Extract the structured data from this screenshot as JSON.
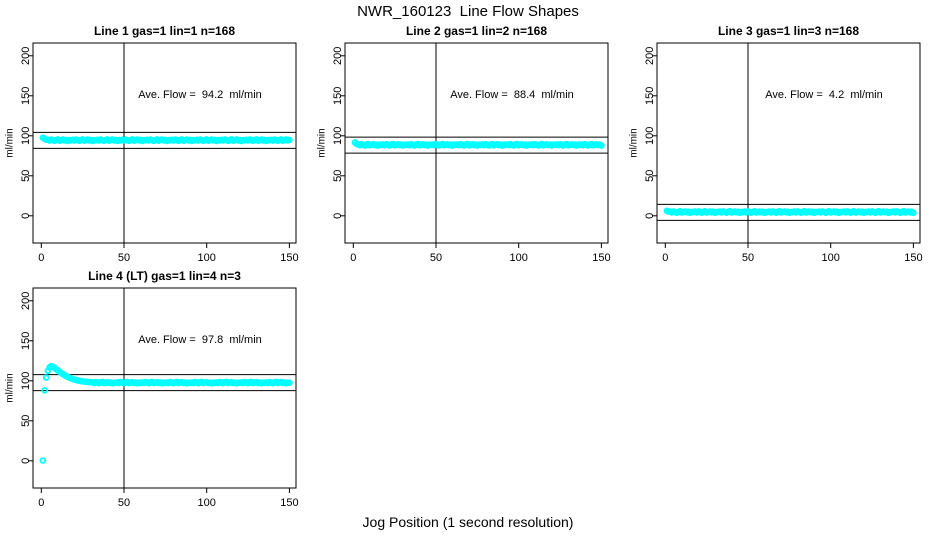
{
  "figure": {
    "title": "NWR_160123  Line Flow Shapes",
    "xlabel": "Jog Position (1 second resolution)",
    "point_color": "#00FFFF",
    "line_color": "#000000",
    "background": "#FFFFFF"
  },
  "chart_data": [
    {
      "type": "scatter",
      "title": "Line 1 gas=1 lin=1 n=168",
      "annotation": "Ave. Flow =  94.2  ml/min",
      "ave_flow": 94.2,
      "ylabel": "ml/min",
      "xlim": [
        -5,
        154
      ],
      "ylim": [
        -34,
        216
      ],
      "x_ticks": [
        0,
        50,
        100,
        150
      ],
      "y_ticks": [
        0,
        50,
        100,
        150,
        200
      ],
      "vline_x": 50,
      "hlines": [
        104.2,
        84.2
      ],
      "x_start": 1,
      "y": [
        97.6,
        96.2,
        95.1,
        95.0,
        94.1,
        95.3,
        94.5,
        93.7,
        94.8,
        95.5,
        93.9,
        94.6,
        95.2,
        94.2,
        94.9,
        93.6,
        94.7,
        94.4,
        95.0,
        94.1,
        95.3,
        94.5,
        93.7,
        94.8,
        95.5,
        93.9,
        94.6,
        95.2,
        94.2,
        94.9,
        93.6,
        94.7,
        94.4,
        95.0,
        94.1,
        95.3,
        94.5,
        93.7,
        94.8,
        95.5,
        93.9,
        94.6,
        95.2,
        94.2,
        94.9,
        93.6,
        94.7,
        94.4,
        95.0,
        94.1,
        95.3,
        94.5,
        93.7,
        94.8,
        95.5,
        93.9,
        94.6,
        95.2,
        94.2,
        94.9,
        93.6,
        94.7,
        94.4,
        95.0,
        94.1,
        95.3,
        94.5,
        93.7,
        94.8,
        95.5,
        93.9,
        94.6,
        95.2,
        94.2,
        94.9,
        93.6,
        94.7,
        94.4,
        95.0,
        94.1,
        95.3,
        94.5,
        93.7,
        94.8,
        95.5,
        93.9,
        94.6,
        95.2,
        94.2,
        94.9,
        93.6,
        94.7,
        94.4,
        95.0,
        94.1,
        95.3,
        94.5,
        93.7,
        94.8,
        95.5,
        93.9,
        94.6,
        95.2,
        94.2,
        94.9,
        93.6,
        94.7,
        94.4,
        95.0,
        94.1,
        95.3,
        94.5,
        93.7,
        94.8,
        95.5,
        93.9,
        94.6,
        95.2,
        94.2,
        94.9,
        93.6,
        94.7,
        94.4,
        95.0,
        94.1,
        95.3,
        94.5,
        93.7,
        94.8,
        95.5,
        93.9,
        94.6,
        95.2,
        94.2,
        94.9,
        93.6,
        94.7,
        94.4,
        95.0,
        94.1,
        95.3,
        94.5,
        93.7,
        94.8,
        95.5,
        93.9,
        94.6,
        95.2,
        94.2,
        94.9
      ]
    },
    {
      "type": "scatter",
      "title": "Line 2 gas=1 lin=2 n=168",
      "annotation": "Ave. Flow =  88.4  ml/min",
      "ave_flow": 88.4,
      "ylabel": "ml/min",
      "xlim": [
        -5,
        154
      ],
      "ylim": [
        -34,
        216
      ],
      "x_ticks": [
        0,
        50,
        100,
        150
      ],
      "y_ticks": [
        0,
        50,
        100,
        150,
        200
      ],
      "vline_x": 50,
      "hlines": [
        98.4,
        78.4
      ],
      "x_start": 1,
      "y": [
        91.8,
        89.9,
        89.2,
        88.3,
        89.5,
        88.7,
        87.9,
        89.0,
        89.7,
        88.1,
        88.8,
        89.4,
        88.4,
        89.1,
        87.8,
        88.9,
        88.6,
        89.2,
        88.3,
        89.5,
        88.7,
        87.9,
        89.0,
        89.7,
        88.1,
        88.8,
        89.4,
        88.4,
        89.1,
        87.8,
        88.9,
        88.6,
        89.2,
        88.3,
        89.5,
        88.7,
        87.9,
        89.0,
        89.7,
        88.1,
        88.8,
        89.4,
        88.4,
        89.1,
        87.8,
        88.9,
        88.6,
        89.2,
        88.3,
        89.5,
        88.7,
        87.9,
        89.0,
        89.7,
        88.1,
        88.8,
        89.4,
        88.4,
        89.1,
        87.8,
        88.9,
        88.6,
        89.2,
        88.3,
        89.5,
        88.7,
        87.9,
        89.0,
        89.7,
        88.1,
        88.8,
        89.4,
        88.4,
        89.1,
        87.8,
        88.9,
        88.6,
        89.2,
        88.3,
        89.5,
        88.7,
        87.9,
        89.0,
        89.7,
        88.1,
        88.8,
        89.4,
        88.4,
        89.1,
        87.8,
        88.9,
        88.6,
        89.2,
        88.3,
        89.5,
        88.7,
        87.9,
        89.0,
        89.7,
        88.1,
        88.8,
        89.4,
        88.4,
        89.1,
        87.8,
        88.9,
        88.6,
        89.2,
        88.3,
        89.5,
        88.7,
        87.9,
        89.0,
        89.7,
        88.1,
        88.8,
        89.4,
        88.4,
        89.1,
        87.8,
        88.9,
        88.6,
        89.2,
        88.3,
        89.5,
        88.7,
        87.9,
        89.0,
        89.7,
        88.1,
        88.8,
        89.4,
        88.4,
        89.1,
        87.8,
        88.9,
        88.6,
        89.2,
        88.3,
        89.5,
        88.7,
        87.9,
        89.0,
        89.7,
        88.1,
        88.8,
        89.4,
        88.4,
        89.1,
        87.8
      ]
    },
    {
      "type": "scatter",
      "title": "Line 3 gas=1 lin=3 n=168",
      "annotation": "Ave. Flow =  4.2  ml/min",
      "ave_flow": 4.2,
      "ylabel": "ml/min",
      "xlim": [
        -5,
        154
      ],
      "ylim": [
        -34,
        216
      ],
      "x_ticks": [
        0,
        50,
        100,
        150
      ],
      "y_ticks": [
        0,
        50,
        100,
        150,
        200
      ],
      "vline_x": 50,
      "hlines": [
        14.2,
        -5.8
      ],
      "x_start": 1,
      "y": [
        6.3,
        5.4,
        5.2,
        4.3,
        5.5,
        4.7,
        3.9,
        5.0,
        5.7,
        4.1,
        4.8,
        5.4,
        4.4,
        5.1,
        3.8,
        4.9,
        4.6,
        5.2,
        4.3,
        5.5,
        4.7,
        3.9,
        5.0,
        5.7,
        4.1,
        4.8,
        5.4,
        4.4,
        5.1,
        3.8,
        4.9,
        4.6,
        5.2,
        4.3,
        5.5,
        4.7,
        3.9,
        5.0,
        5.7,
        4.1,
        4.8,
        5.4,
        4.4,
        5.1,
        3.8,
        4.9,
        4.6,
        5.2,
        4.3,
        5.5,
        4.7,
        3.9,
        5.0,
        5.7,
        4.1,
        4.8,
        5.4,
        4.4,
        5.1,
        3.8,
        4.9,
        4.6,
        5.2,
        4.3,
        5.5,
        4.7,
        3.9,
        5.0,
        5.7,
        4.1,
        4.8,
        5.4,
        4.4,
        5.1,
        3.8,
        4.9,
        4.6,
        5.2,
        4.3,
        5.5,
        4.7,
        3.9,
        5.0,
        5.7,
        4.1,
        4.8,
        5.4,
        4.4,
        5.1,
        3.8,
        4.9,
        4.6,
        5.2,
        4.3,
        5.5,
        4.7,
        3.9,
        5.0,
        5.7,
        4.1,
        4.8,
        5.4,
        4.4,
        5.1,
        3.8,
        4.9,
        4.6,
        5.2,
        4.3,
        5.5,
        4.7,
        3.9,
        5.0,
        5.7,
        4.1,
        4.8,
        5.4,
        4.4,
        5.1,
        3.8,
        4.9,
        4.6,
        5.2,
        4.3,
        5.5,
        4.7,
        3.9,
        5.0,
        5.7,
        4.1,
        4.8,
        5.4,
        4.4,
        5.1,
        3.8,
        4.9,
        4.6,
        5.2,
        4.3,
        5.5,
        4.7,
        3.9,
        5.0,
        5.7,
        4.1,
        4.8,
        5.4,
        4.4,
        5.1,
        3.8
      ]
    },
    {
      "type": "scatter",
      "title": "Line 4 (LT) gas=1 lin=4 n=3",
      "annotation": "Ave. Flow =  97.8  ml/min",
      "ave_flow": 97.8,
      "ylabel": "ml/min",
      "xlim": [
        -5,
        154
      ],
      "ylim": [
        -34,
        216
      ],
      "x_ticks": [
        0,
        50,
        100,
        150
      ],
      "y_ticks": [
        0,
        50,
        100,
        150,
        200
      ],
      "vline_x": 50,
      "hlines": [
        107.8,
        87.8
      ],
      "x_start": 1,
      "y": [
        0.4,
        88.0,
        104.0,
        112.5,
        116.8,
        118.2,
        117.6,
        116.2,
        114.6,
        113.0,
        111.4,
        109.9,
        108.5,
        107.2,
        106.0,
        104.9,
        103.9,
        103.1,
        102.3,
        101.6,
        101.0,
        100.5,
        100.1,
        99.7,
        99.4,
        99.1,
        98.8,
        98.6,
        98.4,
        98.2,
        98.0,
        97.3,
        98.4,
        97.7,
        97.0,
        98.1,
        98.6,
        97.2,
        97.8,
        98.3,
        97.4,
        97.9,
        96.9,
        97.6,
        97.5,
        98.0,
        97.3,
        98.4,
        97.7,
        97.0,
        98.1,
        98.6,
        97.2,
        97.8,
        98.3,
        97.4,
        97.9,
        96.9,
        97.6,
        97.5,
        98.0,
        97.3,
        98.4,
        97.7,
        97.0,
        98.1,
        98.6,
        97.2,
        97.8,
        98.3,
        97.4,
        97.9,
        96.9,
        97.6,
        97.5,
        98.0,
        97.3,
        98.4,
        97.7,
        97.0,
        98.1,
        98.6,
        97.2,
        97.8,
        98.3,
        97.4,
        97.9,
        96.9,
        97.6,
        97.5,
        98.0,
        97.3,
        98.4,
        97.7,
        97.0,
        98.1,
        98.6,
        97.2,
        97.8,
        98.3,
        97.4,
        97.9,
        96.9,
        97.6,
        97.5,
        98.0,
        97.3,
        98.4,
        97.7,
        97.0,
        98.1,
        98.6,
        97.2,
        97.8,
        98.3,
        97.4,
        97.9,
        96.9,
        97.6,
        97.5,
        98.0,
        97.3,
        98.4,
        97.7,
        97.0,
        98.1,
        98.6,
        97.2,
        97.8,
        98.3,
        97.4,
        97.9,
        96.9,
        97.6,
        97.5,
        98.0,
        97.3,
        98.4,
        97.7,
        97.0,
        98.1,
        98.6,
        97.2,
        97.8,
        98.3,
        97.4,
        97.9,
        96.9,
        97.6,
        97.5
      ]
    }
  ]
}
